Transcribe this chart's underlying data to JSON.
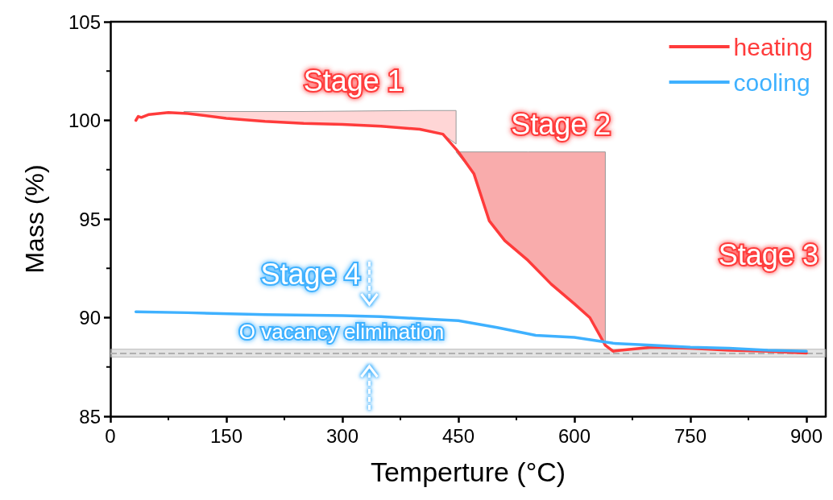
{
  "chart_data": {
    "type": "line",
    "xlabel": "Temperture (°C)",
    "ylabel": "Mass (%)",
    "xlim": [
      0,
      925
    ],
    "xticks": [
      0,
      150,
      300,
      450,
      600,
      750,
      900
    ],
    "ylim": [
      85,
      105
    ],
    "yticks": [
      85,
      90,
      95,
      100,
      105
    ],
    "grid": false,
    "legend": "top right",
    "marker": "none",
    "line_style": "solid",
    "series": [
      {
        "type": "area",
        "color": "#ffd6d6",
        "x": [
          95,
          250,
          400,
          447,
          447,
          430,
          400,
          350,
          300,
          250,
          200,
          150,
          95
        ],
        "values": [
          100.45,
          100.45,
          100.5,
          100.5,
          98.8,
          99.3,
          99.55,
          99.7,
          99.8,
          99.85,
          99.95,
          100.1,
          100.35
        ]
      },
      {
        "type": "area",
        "color": "#f9acac",
        "x": [
          447,
          540,
          640,
          640,
          620,
          600,
          570,
          540,
          510,
          490,
          470,
          447
        ],
        "values": [
          98.4,
          98.4,
          98.4,
          88.6,
          90.0,
          90.7,
          91.7,
          92.9,
          93.9,
          94.9,
          97.3,
          98.4
        ]
      },
      {
        "name": "heating",
        "color": "#ff3b3b",
        "x": [
          33,
          36,
          40,
          50,
          75,
          100,
          150,
          200,
          250,
          300,
          350,
          400,
          430,
          450,
          470,
          490,
          510,
          540,
          570,
          600,
          620,
          640,
          650,
          660,
          700,
          750,
          800,
          850,
          900
        ],
        "values": [
          100.0,
          100.2,
          100.15,
          100.3,
          100.4,
          100.35,
          100.1,
          99.95,
          99.85,
          99.8,
          99.7,
          99.55,
          99.3,
          98.4,
          97.3,
          94.9,
          93.9,
          92.9,
          91.7,
          90.7,
          90.0,
          88.6,
          88.3,
          88.35,
          88.5,
          88.45,
          88.35,
          88.3,
          88.2
        ]
      },
      {
        "name": "cooling",
        "color": "#3fb1ff",
        "x": [
          33,
          100,
          200,
          300,
          350,
          400,
          450,
          500,
          550,
          600,
          650,
          700,
          750,
          800,
          850,
          900
        ],
        "values": [
          90.3,
          90.25,
          90.15,
          90.1,
          90.05,
          89.95,
          89.85,
          89.5,
          89.1,
          89.0,
          88.7,
          88.6,
          88.5,
          88.45,
          88.35,
          88.3
        ]
      }
    ],
    "ref_lines": [
      {
        "axis": "y",
        "value": 88.2,
        "color": "#b0b0b0",
        "line_style": "dashed"
      }
    ],
    "bands": [
      {
        "axis": "y",
        "from": 88.0,
        "to": 88.4,
        "color": "#d0d0d0"
      }
    ],
    "annotations": [
      "Stage 1",
      "Stage 2",
      "Stage 3",
      "Stage 4",
      "O vacancy elimination"
    ]
  }
}
